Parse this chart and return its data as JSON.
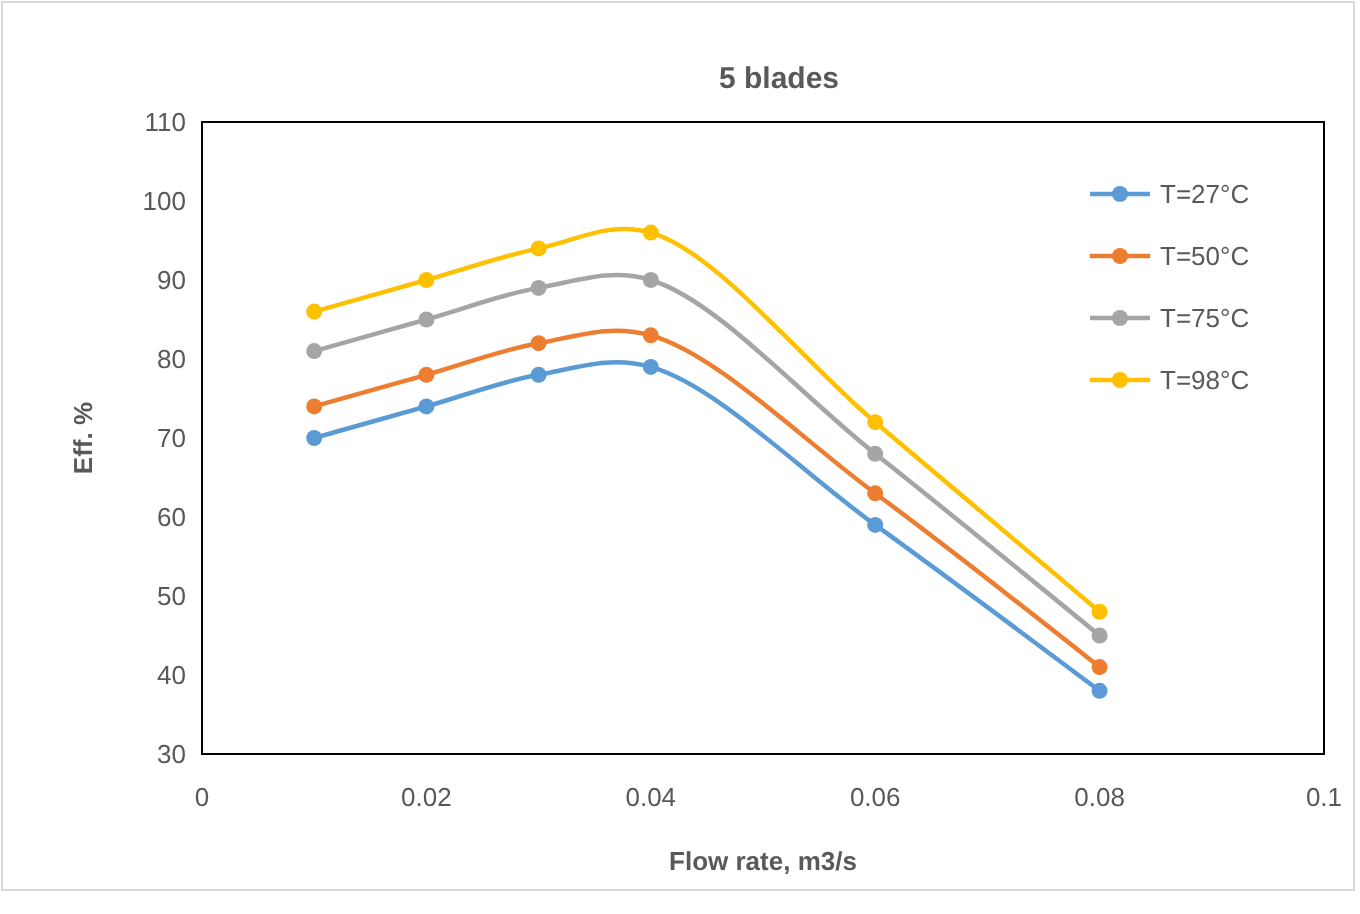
{
  "chart_data": {
    "type": "line",
    "title": "5 blades",
    "xlabel": "Flow rate, m3/s",
    "ylabel": "Eff. %",
    "x": [
      0.01,
      0.02,
      0.03,
      0.04,
      0.06,
      0.08
    ],
    "series": [
      {
        "name": "T=27°C",
        "color": "#5b9bd5",
        "values": [
          70,
          74,
          78,
          79,
          59,
          38
        ]
      },
      {
        "name": "T=50°C",
        "color": "#ed7d31",
        "values": [
          74,
          78,
          82,
          83,
          63,
          41
        ]
      },
      {
        "name": "T=75°C",
        "color": "#a5a5a5",
        "values": [
          81,
          85,
          89,
          90,
          68,
          45
        ]
      },
      {
        "name": "T=98°C",
        "color": "#ffc000",
        "values": [
          86,
          90,
          94,
          96,
          72,
          48
        ]
      }
    ],
    "xlim": [
      0,
      0.1
    ],
    "xticks": [
      0,
      0.02,
      0.04,
      0.06,
      0.08,
      0.1
    ],
    "ylim": [
      30,
      110
    ],
    "yticks": [
      30,
      40,
      50,
      60,
      70,
      80,
      90,
      100,
      110
    ],
    "marker": "circle",
    "line_style": "solid",
    "legend": "top right",
    "grid": false
  }
}
